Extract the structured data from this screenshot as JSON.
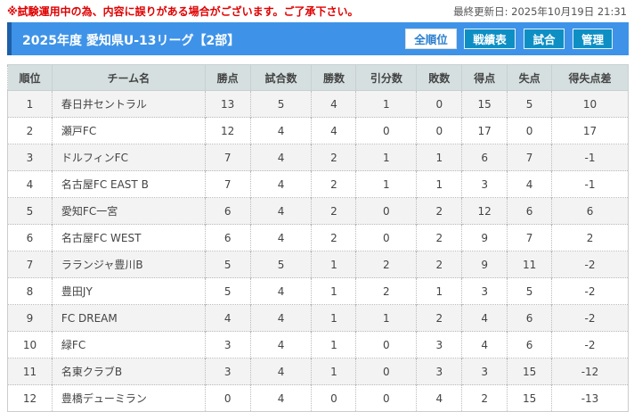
{
  "notice": "※試験運用中の為、内容に誤りがある場合がございます。ご了承下さい。",
  "updated": "最終更新日: 2025年10月19日 21:31",
  "header": {
    "title": "2025年度 愛知県U-13リーグ【2部】",
    "buttons": [
      "全順位",
      "戦績表",
      "試合",
      "管理"
    ]
  },
  "table": {
    "columns": [
      "順位",
      "チーム名",
      "勝点",
      "試合数",
      "勝数",
      "引分数",
      "敗数",
      "得点",
      "失点",
      "得失点差"
    ],
    "rows": [
      [
        "1",
        "春日井セントラル",
        "13",
        "5",
        "4",
        "1",
        "0",
        "15",
        "5",
        "10"
      ],
      [
        "2",
        "瀬戸FC",
        "12",
        "4",
        "4",
        "0",
        "0",
        "17",
        "0",
        "17"
      ],
      [
        "3",
        "ドルフィンFC",
        "7",
        "4",
        "2",
        "1",
        "1",
        "6",
        "7",
        "-1"
      ],
      [
        "4",
        "名古屋FC EAST B",
        "7",
        "4",
        "2",
        "1",
        "1",
        "3",
        "4",
        "-1"
      ],
      [
        "5",
        "愛知FC一宮",
        "6",
        "4",
        "2",
        "0",
        "2",
        "12",
        "6",
        "6"
      ],
      [
        "6",
        "名古屋FC WEST",
        "6",
        "4",
        "2",
        "0",
        "2",
        "9",
        "7",
        "2"
      ],
      [
        "7",
        "ラランジャ豊川B",
        "5",
        "5",
        "1",
        "2",
        "2",
        "9",
        "11",
        "-2"
      ],
      [
        "8",
        "豊田JY",
        "5",
        "4",
        "1",
        "2",
        "1",
        "3",
        "5",
        "-2"
      ],
      [
        "9",
        "FC DREAM",
        "4",
        "4",
        "1",
        "1",
        "2",
        "4",
        "6",
        "-2"
      ],
      [
        "10",
        "緑FC",
        "3",
        "4",
        "1",
        "0",
        "3",
        "4",
        "6",
        "-2"
      ],
      [
        "11",
        "名東クラブB",
        "3",
        "4",
        "1",
        "0",
        "3",
        "3",
        "15",
        "-12"
      ],
      [
        "12",
        "豊橋デューミラン",
        "0",
        "4",
        "0",
        "0",
        "4",
        "2",
        "15",
        "-13"
      ]
    ]
  }
}
